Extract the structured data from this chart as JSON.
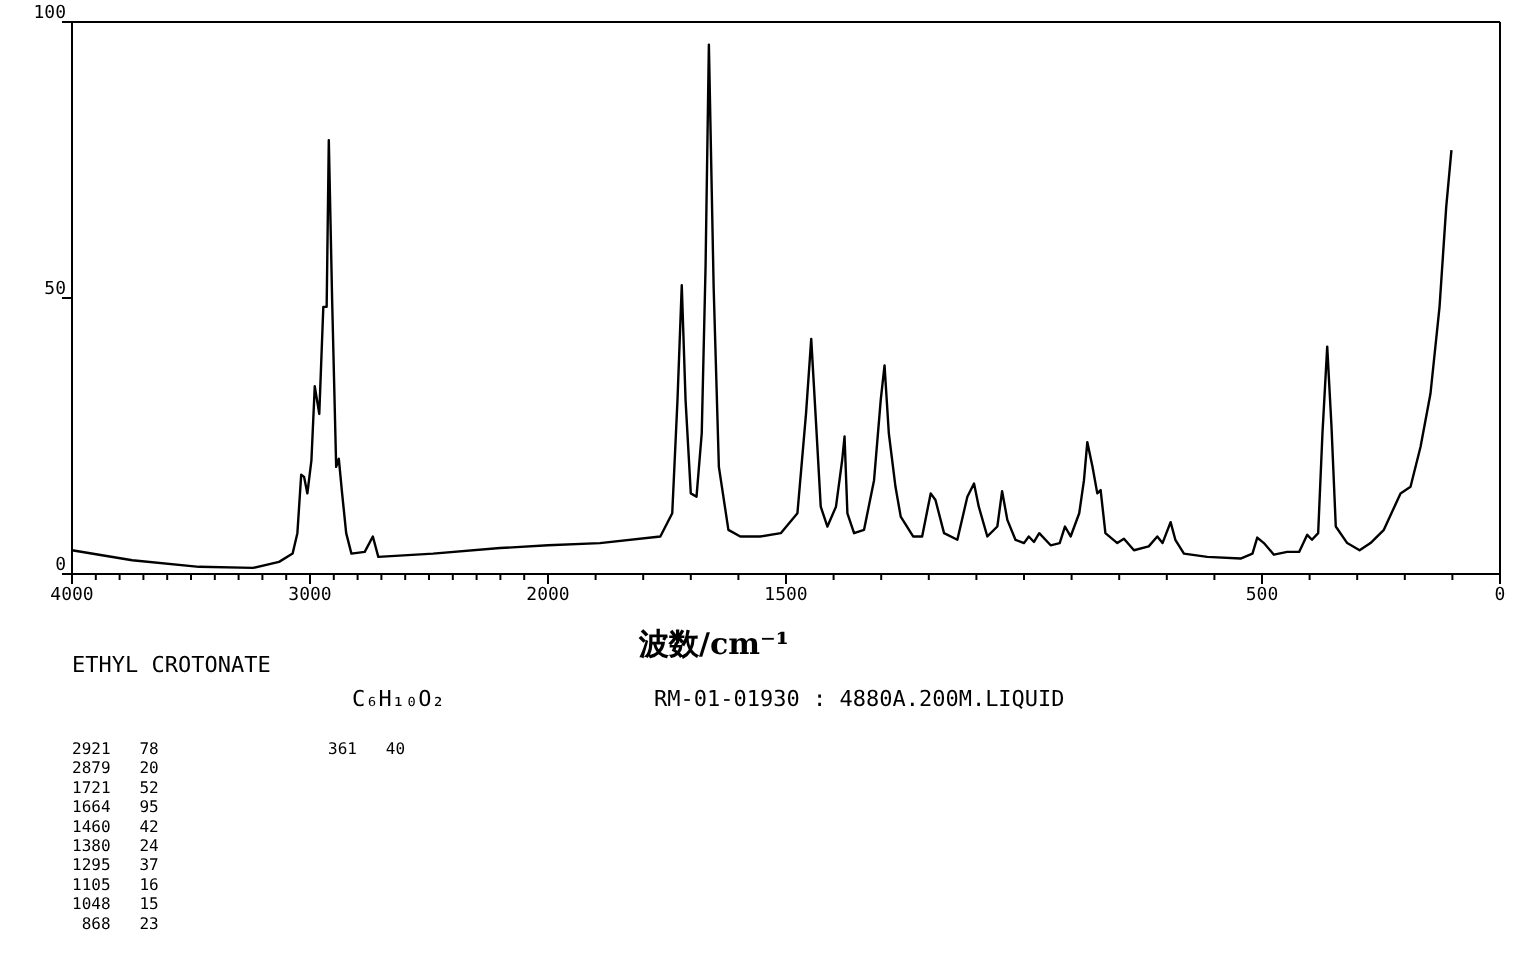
{
  "chart_data": [
    {
      "type": "line",
      "x": [
        4000,
        3747,
        3466,
        3240,
        3130,
        3073,
        3053,
        3037,
        3025,
        3011,
        2994,
        2980,
        2961,
        2944,
        2930,
        2921,
        2907,
        2890,
        2879,
        2865,
        2848,
        2826,
        2770,
        2736,
        2713,
        2483,
        2202,
        2000
      ],
      "series": [
        {
          "color": "#000000",
          "values": [
            4.3,
            2.5,
            1.3,
            1.1,
            2.2,
            3.7,
            7.4,
            18,
            17.6,
            14.6,
            20.6,
            34,
            29,
            48.4,
            48.4,
            78.6,
            49.6,
            19.4,
            20.9,
            14.6,
            7.4,
            3.7,
            4,
            6.8,
            3.1,
            3.7,
            4.7,
            5.2
          ]
        }
      ],
      "xlim": [
        4000,
        2000
      ],
      "xticks": [
        4000,
        {
          "value": 3900,
          "label": null
        },
        {
          "value": 3800,
          "label": null
        },
        {
          "value": 3700,
          "label": null
        },
        {
          "value": 3600,
          "label": null
        },
        {
          "value": 3500,
          "label": null
        },
        {
          "value": 3400,
          "label": null
        },
        {
          "value": 3300,
          "label": null
        },
        {
          "value": 3200,
          "label": null
        },
        {
          "value": 3100,
          "label": null
        },
        3000,
        {
          "value": 2900,
          "label": null
        },
        {
          "value": 2800,
          "label": null
        },
        {
          "value": 2700,
          "label": null
        },
        {
          "value": 2600,
          "label": null
        },
        {
          "value": 2500,
          "label": null
        },
        {
          "value": 2400,
          "label": null
        },
        {
          "value": 2300,
          "label": null
        },
        {
          "value": 2200,
          "label": null
        },
        {
          "value": 2100,
          "label": null
        },
        2000
      ],
      "ylim": [
        0,
        100
      ],
      "yticks": [
        0,
        50,
        100
      ],
      "annotations": [
        "ETHYL CROTONATE",
        "C₆H₁₀O₂",
        "RM-01-01930 : 4880A.200M.LIQUID",
        "2921   78",
        "2879   20",
        "1721   52",
        "1664   95",
        "1460   42",
        "1380   24",
        "1295   37",
        "1105   16",
        "1048   15",
        " 868   23",
        "361   40"
      ]
    },
    {
      "type": "line",
      "xlabel": "波数/cm⁻¹",
      "x": [
        2000,
        1891,
        1764,
        1739,
        1728,
        1719,
        1711,
        1700,
        1688,
        1677,
        1669,
        1662,
        1652,
        1641,
        1621,
        1596,
        1554,
        1511,
        1476,
        1458,
        1447,
        1438,
        1427,
        1413,
        1395,
        1382,
        1377,
        1371,
        1357,
        1336,
        1315,
        1301,
        1293,
        1284,
        1270,
        1259,
        1233,
        1214,
        1196,
        1186,
        1168,
        1140,
        1119,
        1105,
        1095,
        1077,
        1056,
        1046,
        1035,
        1018,
        1000,
        990,
        979,
        968,
        944,
        925,
        914,
        902,
        884,
        874,
        867,
        856,
        846,
        839,
        829,
        804,
        790,
        769,
        738,
        720,
        709,
        692,
        682,
        664,
        615,
        545,
        520,
        510,
        496,
        475,
        447,
        422,
        405,
        395,
        382,
        373,
        363,
        354,
        345,
        321,
        295,
        272,
        244,
        209,
        188,
        167,
        146,
        127,
        113,
        102
      ],
      "series": [
        {
          "color": "#000000",
          "values": [
            5.2,
            5.6,
            6.8,
            11,
            31.5,
            52.3,
            31.5,
            14.6,
            14,
            25.5,
            55.7,
            95.9,
            52,
            19.4,
            8,
            6.8,
            6.8,
            7.4,
            11,
            29,
            42.6,
            29,
            12.2,
            8.6,
            12.2,
            20.6,
            24.9,
            11,
            7.4,
            8,
            17,
            31.5,
            37.8,
            25.5,
            15.8,
            10.4,
            6.8,
            6.8,
            14.6,
            13.4,
            7.4,
            6.2,
            14,
            16.4,
            12.2,
            6.8,
            8.6,
            15,
            9.8,
            6.2,
            5.6,
            6.8,
            5.8,
            7.4,
            5.2,
            5.6,
            8.6,
            6.8,
            11,
            17,
            23.9,
            19.4,
            14.6,
            15.2,
            7.4,
            5.6,
            6.4,
            4.3,
            5,
            6.8,
            5.6,
            9.4,
            6.2,
            3.7,
            3.1,
            2.8,
            3.7,
            6.6,
            5.6,
            3.5,
            4,
            4,
            7.1,
            6.2,
            7.4,
            25.5,
            41.2,
            26.7,
            8.6,
            5.6,
            4.3,
            5.6,
            8,
            14.6,
            15.8,
            23,
            32.7,
            48.4,
            66.5,
            76.8
          ]
        }
      ],
      "xlim": [
        2000,
        0
      ],
      "xticks": [
        {
          "value": 1900,
          "label": null
        },
        {
          "value": 1800,
          "label": null
        },
        {
          "value": 1700,
          "label": null
        },
        {
          "value": 1600,
          "label": null
        },
        1500,
        {
          "value": 1400,
          "label": null
        },
        {
          "value": 1300,
          "label": null
        },
        {
          "value": 1200,
          "label": null
        },
        {
          "value": 1100,
          "label": null
        },
        {
          "value": 1000,
          "label": null
        },
        {
          "value": 900,
          "label": null
        },
        {
          "value": 800,
          "label": null
        },
        {
          "value": 700,
          "label": null
        },
        {
          "value": 600,
          "label": null
        },
        500,
        {
          "value": 400,
          "label": null
        },
        {
          "value": 300,
          "label": null
        },
        {
          "value": 200,
          "label": null
        },
        {
          "value": 100,
          "label": null
        },
        0
      ],
      "ylim": [
        0,
        100
      ],
      "tick_labels": "x"
    }
  ]
}
